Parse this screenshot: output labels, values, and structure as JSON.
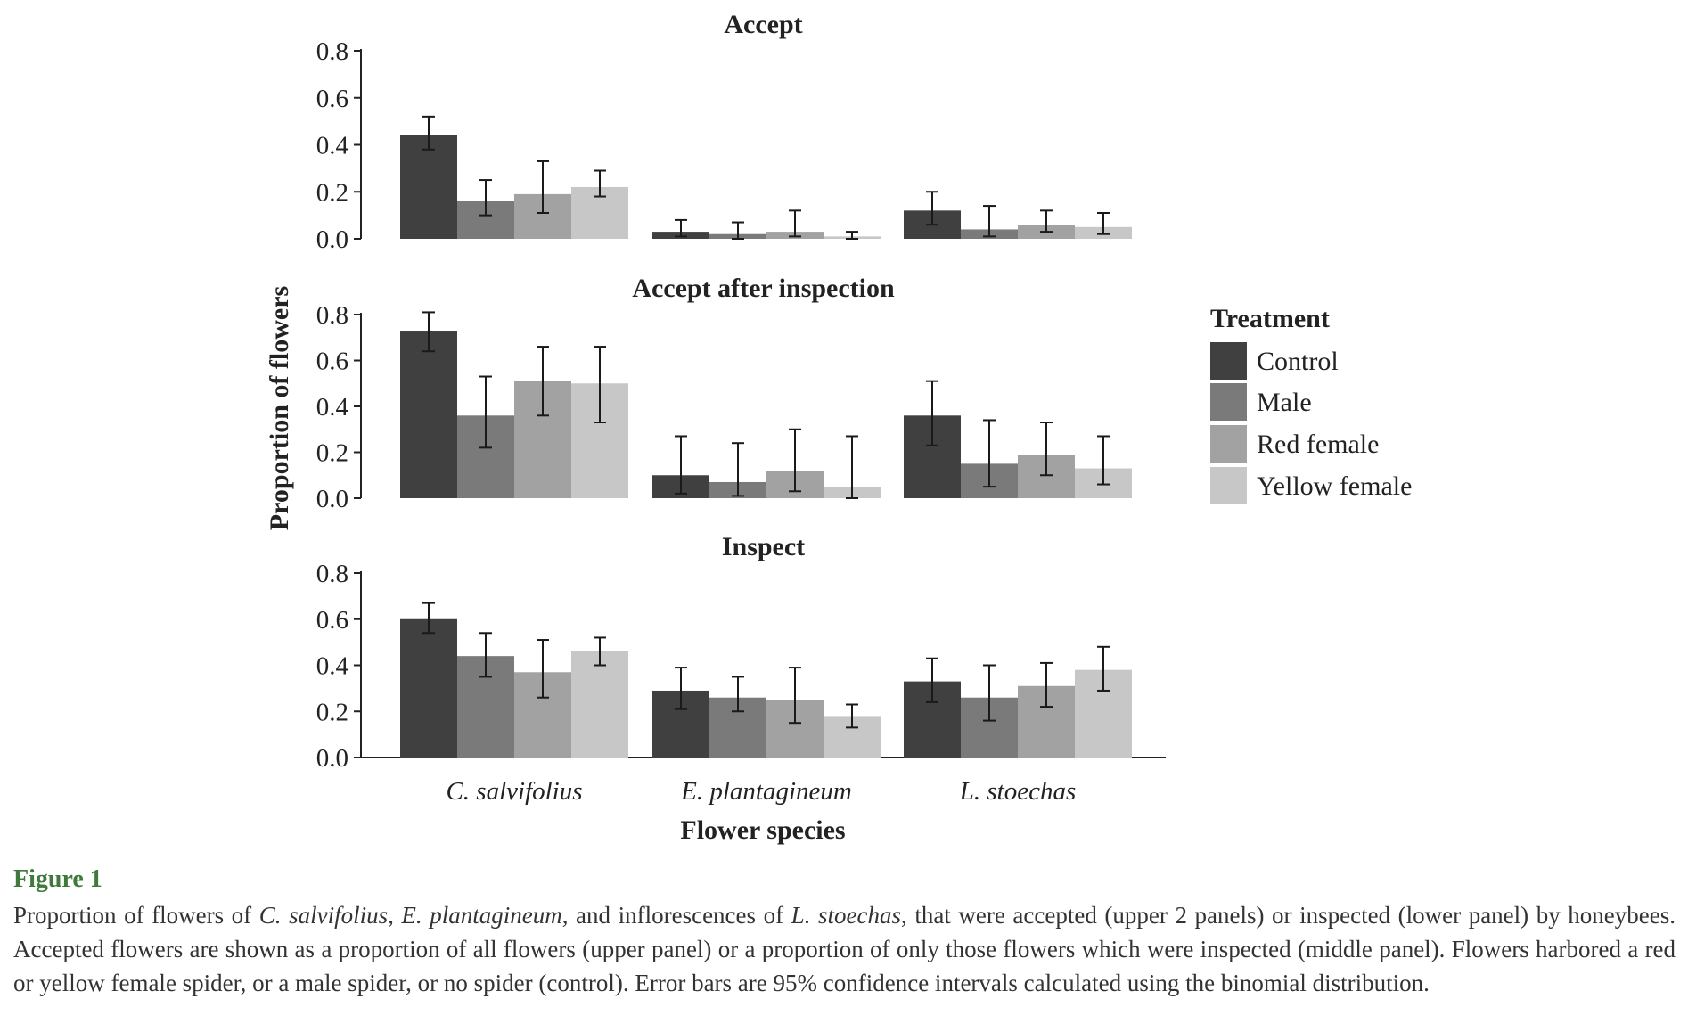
{
  "chart_data": {
    "type": "bar",
    "ylabel": "Proportion of flowers",
    "xlabel": "Flower species",
    "categories": [
      "C. salvifolius",
      "E. plantagineum",
      "L. stoechas"
    ],
    "ylim": [
      0,
      0.8
    ],
    "yticks": [
      "0.0",
      "0.2",
      "0.4",
      "0.6",
      "0.8"
    ],
    "legend": {
      "title": "Treatment",
      "placement": "right",
      "entries": [
        "Control",
        "Male",
        "Red female",
        "Yellow female"
      ]
    },
    "series_colors": [
      "#404040",
      "#7a7a7a",
      "#a2a2a2",
      "#c7c7c7"
    ],
    "panels": [
      {
        "title": "Accept",
        "series": [
          {
            "name": "Control",
            "values": [
              0.44,
              0.03,
              0.12
            ],
            "err_low": [
              0.38,
              0.01,
              0.06
            ],
            "err_high": [
              0.52,
              0.08,
              0.2
            ]
          },
          {
            "name": "Male",
            "values": [
              0.16,
              0.02,
              0.04
            ],
            "err_low": [
              0.1,
              0.0,
              0.01
            ],
            "err_high": [
              0.25,
              0.07,
              0.14
            ]
          },
          {
            "name": "Red female",
            "values": [
              0.19,
              0.03,
              0.06
            ],
            "err_low": [
              0.11,
              0.01,
              0.03
            ],
            "err_high": [
              0.33,
              0.12,
              0.12
            ]
          },
          {
            "name": "Yellow female",
            "values": [
              0.22,
              0.01,
              0.05
            ],
            "err_low": [
              0.18,
              0.0,
              0.02
            ],
            "err_high": [
              0.29,
              0.03,
              0.11
            ]
          }
        ]
      },
      {
        "title": "Accept after inspection",
        "series": [
          {
            "name": "Control",
            "values": [
              0.73,
              0.1,
              0.36
            ],
            "err_low": [
              0.64,
              0.02,
              0.23
            ],
            "err_high": [
              0.81,
              0.27,
              0.51
            ]
          },
          {
            "name": "Male",
            "values": [
              0.36,
              0.07,
              0.15
            ],
            "err_low": [
              0.22,
              0.01,
              0.05
            ],
            "err_high": [
              0.53,
              0.24,
              0.34
            ]
          },
          {
            "name": "Red female",
            "values": [
              0.51,
              0.12,
              0.19
            ],
            "err_low": [
              0.36,
              0.03,
              0.1
            ],
            "err_high": [
              0.66,
              0.3,
              0.33
            ]
          },
          {
            "name": "Yellow female",
            "values": [
              0.5,
              0.05,
              0.13
            ],
            "err_low": [
              0.33,
              0.0,
              0.06
            ],
            "err_high": [
              0.66,
              0.27,
              0.27
            ]
          }
        ]
      },
      {
        "title": "Inspect",
        "series": [
          {
            "name": "Control",
            "values": [
              0.6,
              0.29,
              0.33
            ],
            "err_low": [
              0.54,
              0.21,
              0.24
            ],
            "err_high": [
              0.67,
              0.39,
              0.43
            ]
          },
          {
            "name": "Male",
            "values": [
              0.44,
              0.26,
              0.26
            ],
            "err_low": [
              0.35,
              0.2,
              0.16
            ],
            "err_high": [
              0.54,
              0.35,
              0.4
            ]
          },
          {
            "name": "Red female",
            "values": [
              0.37,
              0.25,
              0.31
            ],
            "err_low": [
              0.26,
              0.15,
              0.22
            ],
            "err_high": [
              0.51,
              0.39,
              0.41
            ]
          },
          {
            "name": "Yellow female",
            "values": [
              0.46,
              0.18,
              0.38
            ],
            "err_low": [
              0.4,
              0.13,
              0.29
            ],
            "err_high": [
              0.52,
              0.23,
              0.48
            ]
          }
        ]
      }
    ]
  },
  "caption": {
    "label": "Figure 1",
    "segments": [
      {
        "text": "Proportion of flowers of ",
        "italic": false
      },
      {
        "text": "C. salvifolius",
        "italic": true
      },
      {
        "text": ", ",
        "italic": false
      },
      {
        "text": "E. plantagineum",
        "italic": true
      },
      {
        "text": ", and inflorescences of ",
        "italic": false
      },
      {
        "text": "L. stoechas",
        "italic": true
      },
      {
        "text": ", that were accepted (upper 2 panels) or inspected (lower panel) by honeybees. Accepted flowers are shown as a proportion of all flowers (upper panel) or a proportion of only those flowers which were inspected (middle panel). Flowers harbored a red or yellow female spider, or a male spider, or no spider (control). Error bars are 95% confidence intervals calculated using the binomial distribution.",
        "italic": false
      }
    ]
  }
}
